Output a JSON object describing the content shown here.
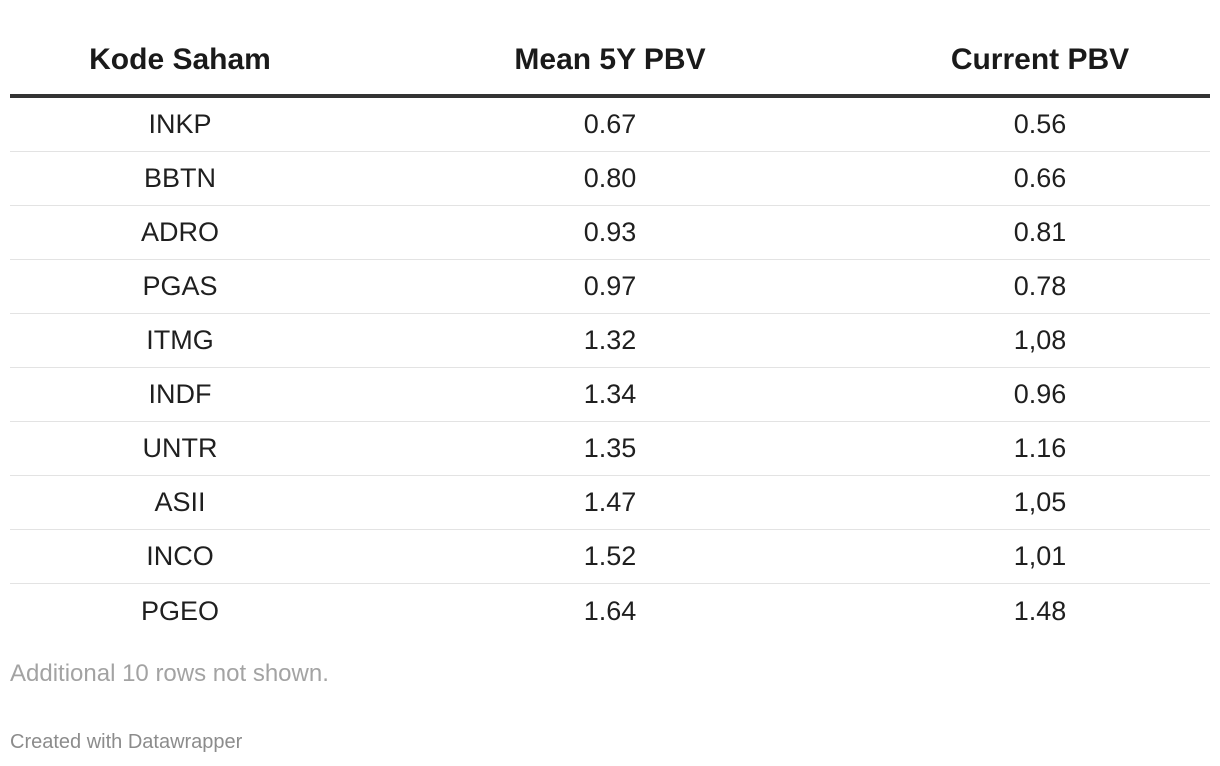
{
  "chart_data": {
    "type": "table",
    "columns": [
      "Kode Saham",
      "Mean 5Y PBV",
      "Current PBV"
    ],
    "rows": [
      [
        "INKP",
        "0.67",
        "0.56"
      ],
      [
        "BBTN",
        "0.80",
        "0.66"
      ],
      [
        "ADRO",
        "0.93",
        "0.81"
      ],
      [
        "PGAS",
        "0.97",
        "0.78"
      ],
      [
        "ITMG",
        "1.32",
        "1,08"
      ],
      [
        "INDF",
        "1.34",
        "0.96"
      ],
      [
        "UNTR",
        "1.35",
        "1.16"
      ],
      [
        "ASII",
        "1.47",
        "1,05"
      ],
      [
        "INCO",
        "1.52",
        "1,01"
      ],
      [
        "PGEO",
        "1.64",
        "1.48"
      ]
    ]
  },
  "note": "Additional 10 rows not shown.",
  "credit": "Created with Datawrapper",
  "colors": {
    "header_rule": "#333333",
    "row_divider": "#e3e3e3",
    "note_text": "#a3a3a3",
    "credit_text": "#8c8c8c"
  }
}
